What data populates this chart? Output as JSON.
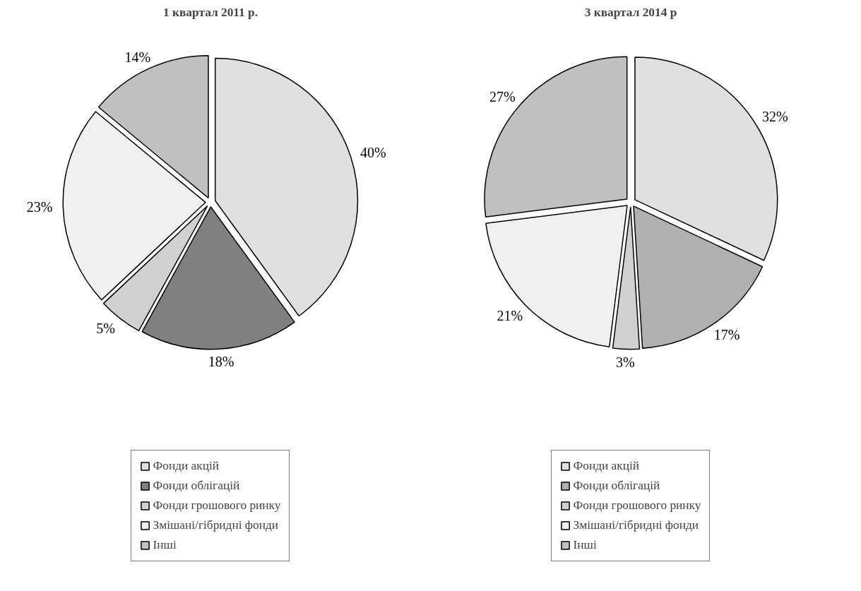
{
  "chart_data": [
    {
      "type": "pie",
      "title": "1 квартал 2011 р.",
      "categories": [
        "Фонди акцій",
        "Фонди облігацій",
        "Фонди грошового ринку",
        "Змішані/гібридні фонди",
        "Інші"
      ],
      "values": [
        40,
        18,
        5,
        23,
        14
      ],
      "value_labels": [
        "40%",
        "18%",
        "5%",
        "23%",
        "14%"
      ],
      "colors": [
        "#e0e0e0",
        "#808080",
        "#d0d0d0",
        "#f0f0f0",
        "#c0c0c0"
      ],
      "legend": "bottom"
    },
    {
      "type": "pie",
      "title": "3 квартал 2014 р",
      "categories": [
        "Фонди акцій",
        "Фонди облігацій",
        "Фонди грошового ринку",
        "Змішані/гібридні фонди",
        "Інші"
      ],
      "values": [
        32,
        17,
        3,
        21,
        27
      ],
      "value_labels": [
        "32%",
        "17%",
        "3%",
        "21%",
        "27%"
      ],
      "colors": [
        "#e0e0e0",
        "#b0b0b0",
        "#d0d0d0",
        "#f0f0f0",
        "#c0c0c0"
      ],
      "legend": "bottom"
    }
  ]
}
